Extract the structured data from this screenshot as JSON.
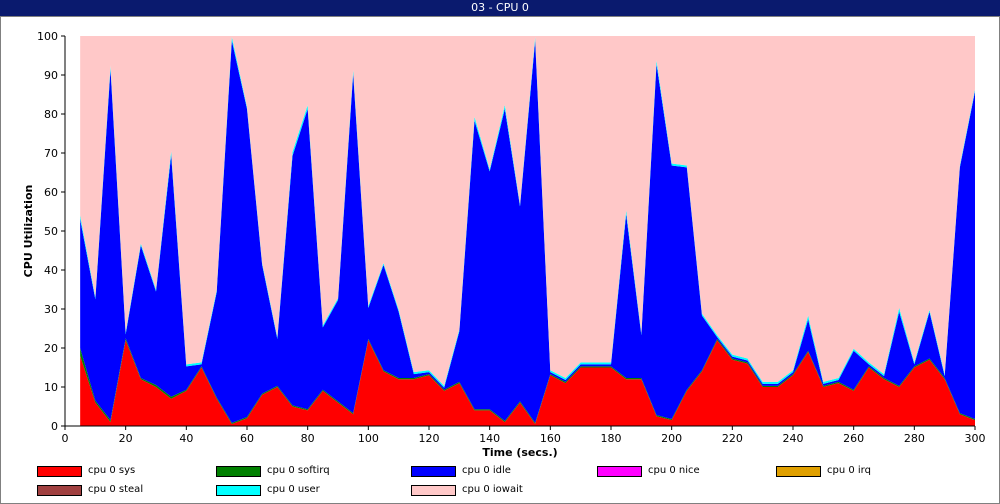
{
  "window": {
    "title": "03 - CPU 0"
  },
  "chart_data": {
    "type": "area",
    "stacked": true,
    "title": "03 - CPU 0",
    "xlabel": "Time (secs.)",
    "ylabel": "CPU Utilization",
    "xlim": [
      0,
      300
    ],
    "ylim": [
      0,
      100
    ],
    "xticks": [
      0,
      20,
      40,
      60,
      80,
      100,
      120,
      140,
      160,
      180,
      200,
      220,
      240,
      260,
      280,
      300
    ],
    "yticks": [
      0,
      10,
      20,
      30,
      40,
      50,
      60,
      70,
      80,
      90,
      100
    ],
    "grid": false,
    "legend_position": "bottom",
    "x": [
      5,
      10,
      15,
      20,
      25,
      30,
      35,
      40,
      45,
      50,
      55,
      60,
      65,
      70,
      75,
      80,
      85,
      90,
      95,
      100,
      105,
      110,
      115,
      120,
      125,
      130,
      135,
      140,
      145,
      150,
      155,
      160,
      165,
      170,
      175,
      180,
      185,
      190,
      195,
      200,
      205,
      210,
      215,
      220,
      225,
      230,
      235,
      240,
      245,
      250,
      255,
      260,
      265,
      270,
      275,
      280,
      285,
      290,
      295,
      300
    ],
    "series": [
      {
        "name": "cpu 0 sys",
        "color": "#ff0000",
        "values": [
          18,
          6,
          1,
          22,
          12,
          10,
          7,
          9,
          15,
          7,
          0.5,
          2,
          8,
          10,
          5,
          4,
          9,
          6,
          3,
          22,
          14,
          12,
          12,
          13,
          9,
          11,
          4,
          4,
          1,
          6,
          0.5,
          13,
          11,
          15,
          15,
          15,
          12,
          12,
          2.5,
          1.5,
          9,
          14,
          22,
          17,
          16,
          10,
          10,
          13,
          19,
          10,
          11,
          9,
          15,
          12,
          10,
          15,
          17,
          12,
          3,
          1.5
        ]
      },
      {
        "name": "cpu 0 softirq",
        "color": "#008000",
        "values": [
          2,
          0.5,
          0.5,
          0.5,
          0.3,
          0.5,
          0.5,
          0.3,
          0.3,
          0.3,
          0.3,
          0.3,
          0.3,
          0.3,
          0.3,
          0.3,
          0.3,
          0.3,
          0.3,
          0.3,
          0.3,
          0.3,
          0.3,
          0.3,
          0.3,
          0.3,
          0.3,
          0.3,
          0.3,
          0.3,
          0.3,
          0.3,
          0.3,
          0.3,
          0.3,
          0.3,
          0.3,
          0.3,
          0.3,
          0.3,
          0.3,
          0.3,
          0.3,
          0.3,
          0.3,
          0.3,
          0.3,
          0.3,
          0.3,
          0.3,
          0.3,
          0.3,
          0.3,
          0.3,
          0.3,
          0.3,
          0.3,
          0.3,
          0.3,
          0.3
        ]
      },
      {
        "name": "cpu 0 idle",
        "color": "#0000ff",
        "values": [
          33,
          26,
          90,
          1,
          34,
          24,
          62,
          6,
          0.5,
          27,
          98,
          79,
          33,
          12,
          64,
          77,
          16,
          26,
          87,
          8,
          27,
          17,
          1,
          0.5,
          0.5,
          13,
          74,
          61,
          80,
          50,
          98,
          0.5,
          0.5,
          0.5,
          0.5,
          0.5,
          42,
          11,
          90,
          65,
          57,
          14,
          0.5,
          0.5,
          0.5,
          0.5,
          0.5,
          0.5,
          8,
          0.5,
          0.5,
          10,
          0.5,
          0.5,
          19,
          0.5,
          12,
          0.5,
          63,
          84
        ]
      },
      {
        "name": "cpu 0 nice",
        "color": "#ff00ff",
        "values": [
          0,
          0,
          0,
          0,
          0,
          0,
          0,
          0,
          0,
          0,
          0,
          0,
          0,
          0,
          0,
          0,
          0,
          0,
          0,
          0,
          0,
          0,
          0,
          0,
          0,
          0,
          0,
          0,
          0,
          0,
          0,
          0,
          0,
          0,
          0,
          0,
          0,
          0,
          0,
          0,
          0,
          0,
          0,
          0,
          0,
          0,
          0,
          0,
          0,
          0,
          0,
          0,
          0,
          0,
          0,
          0,
          0,
          0,
          0,
          0
        ]
      },
      {
        "name": "cpu 0 irq",
        "color": "#e0a000",
        "values": [
          0,
          0,
          0,
          0,
          0,
          0,
          0,
          0,
          0,
          0,
          0,
          0,
          0,
          0,
          0,
          0,
          0,
          0,
          0,
          0,
          0,
          0,
          0,
          0,
          0,
          0,
          0,
          0,
          0,
          0,
          0,
          0,
          0,
          0,
          0,
          0,
          0,
          0,
          0,
          0,
          0,
          0,
          0,
          0,
          0,
          0,
          0,
          0,
          0,
          0,
          0,
          0,
          0,
          0,
          0,
          0,
          0,
          0,
          0,
          0
        ]
      },
      {
        "name": "cpu 0 steal",
        "color": "#a04040",
        "values": [
          0,
          0,
          0,
          0,
          0,
          0,
          0,
          0,
          0,
          0,
          0,
          0,
          0,
          0,
          0,
          0,
          0,
          0,
          0,
          0,
          0,
          0,
          0,
          0,
          0,
          0,
          0,
          0,
          0,
          0,
          0,
          0,
          0,
          0,
          0,
          0,
          0,
          0,
          0,
          0,
          0,
          0,
          0,
          0,
          0,
          0,
          0,
          0,
          0,
          0,
          0,
          0,
          0,
          0,
          0,
          0,
          0,
          0,
          0,
          0
        ]
      },
      {
        "name": "cpu 0 user",
        "color": "#00ffff",
        "values": [
          1,
          0.5,
          1,
          0.5,
          0.5,
          0.5,
          1,
          0.5,
          0.5,
          0.5,
          1,
          0.5,
          0.5,
          0.5,
          1,
          1,
          0.5,
          0.5,
          1,
          0.5,
          0.5,
          0.5,
          0.5,
          0.5,
          0.5,
          0.5,
          1,
          0.5,
          1,
          0.5,
          1,
          0.5,
          0.5,
          0.5,
          0.5,
          0.5,
          1,
          0.5,
          1,
          0.5,
          0.5,
          0.5,
          0.5,
          0.5,
          0.5,
          0.5,
          0.5,
          0.5,
          1,
          0.5,
          0.5,
          0.5,
          0.5,
          0.5,
          1,
          0.5,
          0.5,
          0.5,
          0.5,
          0.5
        ]
      },
      {
        "name": "cpu 0 iowait",
        "color": "#ffc8c8",
        "fill_to_top": true
      }
    ]
  }
}
